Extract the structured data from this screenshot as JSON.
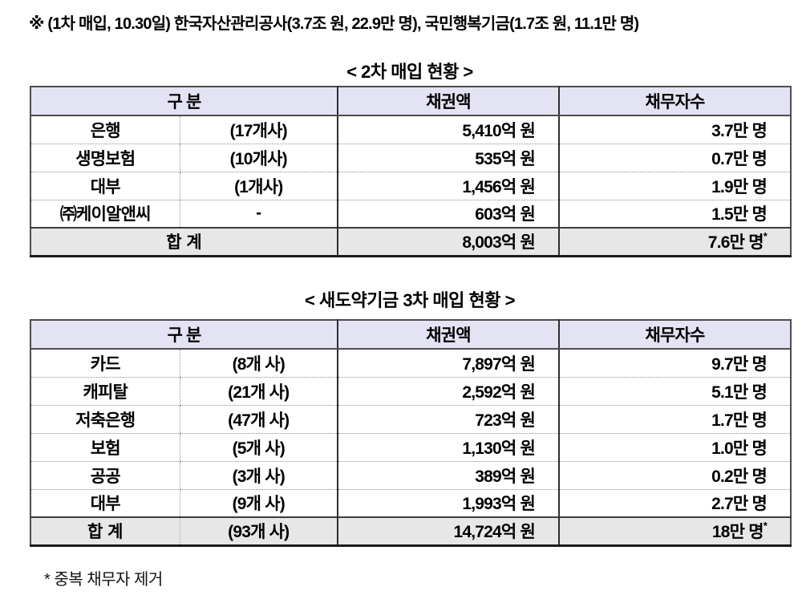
{
  "page": {
    "annotation": "※ (1차 매입, 10.30일) 한국자산관리공사(3.7조 원, 22.9만 명), 국민행복기금(1.7조 원, 11.1만 명)",
    "footnote": "* 중복 채무자 제거"
  },
  "colors": {
    "header_row_bg": "#E3E3F3",
    "total_row_bg": "#E7E7E7",
    "text": "#000000"
  },
  "tables": [
    {
      "title": "< 2차 매입 현황 >",
      "headers": {
        "category": "구 분",
        "amount": "채권액",
        "debtors": "채무자수"
      },
      "rows": [
        {
          "name": "은행",
          "count": "(17개사)",
          "amount": "5,410억 원",
          "debtors": "3.7만 명"
        },
        {
          "name": "생명보험",
          "count": "(10개사)",
          "amount": "535억 원",
          "debtors": "0.7만 명"
        },
        {
          "name": "대부",
          "count": "(1개사)",
          "amount": "1,456억 원",
          "debtors": "1.9만 명"
        },
        {
          "name": "㈜케이알앤씨",
          "count": "-",
          "amount": "603억 원",
          "debtors": "1.5만 명"
        }
      ],
      "total": {
        "label": "합 계",
        "amount": "8,003억 원",
        "debtors": "7.6만 명",
        "star": "*"
      }
    },
    {
      "title": "< 새도약기금 3차 매입 현황 >",
      "headers": {
        "category": "구 분",
        "amount": "채권액",
        "debtors": "채무자수"
      },
      "rows": [
        {
          "name": "카드",
          "count": "(8개 사)",
          "amount": "7,897억 원",
          "debtors": "9.7만 명"
        },
        {
          "name": "캐피탈",
          "count": "(21개 사)",
          "amount": "2,592억 원",
          "debtors": "5.1만 명"
        },
        {
          "name": "저축은행",
          "count": "(47개 사)",
          "amount": "723억 원",
          "debtors": "1.7만 명"
        },
        {
          "name": "보험",
          "count": "(5개 사)",
          "amount": "1,130억 원",
          "debtors": "1.0만 명"
        },
        {
          "name": "공공",
          "count": "(3개 사)",
          "amount": "389억 원",
          "debtors": "0.2만 명"
        },
        {
          "name": "대부",
          "count": "(9개 사)",
          "amount": "1,993억 원",
          "debtors": "2.7만 명"
        }
      ],
      "total": {
        "label": "합 계",
        "count": "(93개 사)",
        "amount": "14,724억 원",
        "debtors": "18만 명",
        "star": "*"
      }
    }
  ]
}
